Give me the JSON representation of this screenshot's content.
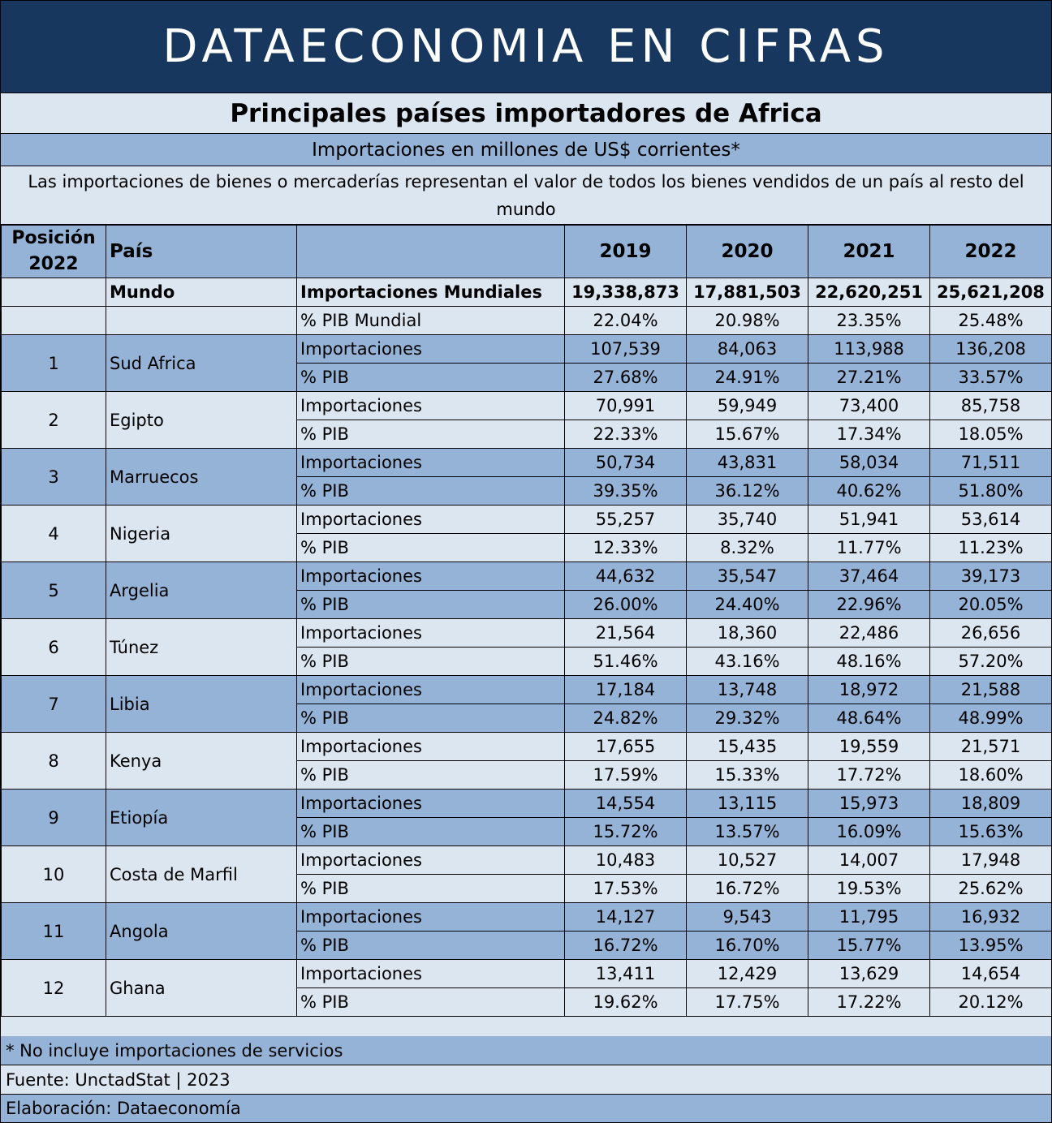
{
  "banner": "DATAECONOMIA EN CIFRAS",
  "title": "Principales países importadores de Africa",
  "subtitle": "Importaciones en millones de US$ corrientes*",
  "description": "Las importaciones de bienes o mercaderías representan el valor de todos los bienes vendidos de un país al resto del mundo",
  "headers": {
    "position": "Posición 2022",
    "country": "País",
    "metric": ""
  },
  "chart_data": {
    "type": "table",
    "years": [
      "2019",
      "2020",
      "2021",
      "2022"
    ],
    "world": {
      "name": "Mundo",
      "imports_label": "Importaciones Mundiales",
      "imports": [
        "19,338,873",
        "17,881,503",
        "22,620,251",
        "25,621,208"
      ],
      "gdp_label": "% PIB Mundial",
      "gdp": [
        "22.04%",
        "20.98%",
        "23.35%",
        "25.48%"
      ]
    },
    "imports_label": "Importaciones",
    "gdp_label": "% PIB",
    "countries": [
      {
        "rank": "1",
        "name": "Sud Africa",
        "imports": [
          "107,539",
          "84,063",
          "113,988",
          "136,208"
        ],
        "gdp": [
          "27.68%",
          "24.91%",
          "27.21%",
          "33.57%"
        ]
      },
      {
        "rank": "2",
        "name": "Egipto",
        "imports": [
          "70,991",
          "59,949",
          "73,400",
          "85,758"
        ],
        "gdp": [
          "22.33%",
          "15.67%",
          "17.34%",
          "18.05%"
        ]
      },
      {
        "rank": "3",
        "name": "Marruecos",
        "imports": [
          "50,734",
          "43,831",
          "58,034",
          "71,511"
        ],
        "gdp": [
          "39.35%",
          "36.12%",
          "40.62%",
          "51.80%"
        ]
      },
      {
        "rank": "4",
        "name": "Nigeria",
        "imports": [
          "55,257",
          "35,740",
          "51,941",
          "53,614"
        ],
        "gdp": [
          "12.33%",
          "8.32%",
          "11.77%",
          "11.23%"
        ]
      },
      {
        "rank": "5",
        "name": "Argelia",
        "imports": [
          "44,632",
          "35,547",
          "37,464",
          "39,173"
        ],
        "gdp": [
          "26.00%",
          "24.40%",
          "22.96%",
          "20.05%"
        ]
      },
      {
        "rank": "6",
        "name": "Túnez",
        "imports": [
          "21,564",
          "18,360",
          "22,486",
          "26,656"
        ],
        "gdp": [
          "51.46%",
          "43.16%",
          "48.16%",
          "57.20%"
        ]
      },
      {
        "rank": "7",
        "name": "Libia",
        "imports": [
          "17,184",
          "13,748",
          "18,972",
          "21,588"
        ],
        "gdp": [
          "24.82%",
          "29.32%",
          "48.64%",
          "48.99%"
        ]
      },
      {
        "rank": "8",
        "name": "Kenya",
        "imports": [
          "17,655",
          "15,435",
          "19,559",
          "21,571"
        ],
        "gdp": [
          "17.59%",
          "15.33%",
          "17.72%",
          "18.60%"
        ]
      },
      {
        "rank": "9",
        "name": "Etiopía",
        "imports": [
          "14,554",
          "13,115",
          "15,973",
          "18,809"
        ],
        "gdp": [
          "15.72%",
          "13.57%",
          "16.09%",
          "15.63%"
        ]
      },
      {
        "rank": "10",
        "name": "Costa de Marfil",
        "imports": [
          "10,483",
          "10,527",
          "14,007",
          "17,948"
        ],
        "gdp": [
          "17.53%",
          "16.72%",
          "19.53%",
          "25.62%"
        ]
      },
      {
        "rank": "11",
        "name": "Angola",
        "imports": [
          "14,127",
          "9,543",
          "11,795",
          "16,932"
        ],
        "gdp": [
          "16.72%",
          "16.70%",
          "15.77%",
          "13.95%"
        ]
      },
      {
        "rank": "12",
        "name": "Ghana",
        "imports": [
          "13,411",
          "12,429",
          "13,629",
          "14,654"
        ],
        "gdp": [
          "19.62%",
          "17.75%",
          "17.22%",
          "20.12%"
        ]
      }
    ]
  },
  "footer": {
    "note": "* No incluye importaciones de servicios",
    "source": "Fuente: UnctadStat | 2023",
    "credit": "Elaboración: Dataeconomía"
  },
  "colors": {
    "banner": "#17375e",
    "dark_row": "#95b3d7",
    "light_row": "#dce6f1"
  }
}
